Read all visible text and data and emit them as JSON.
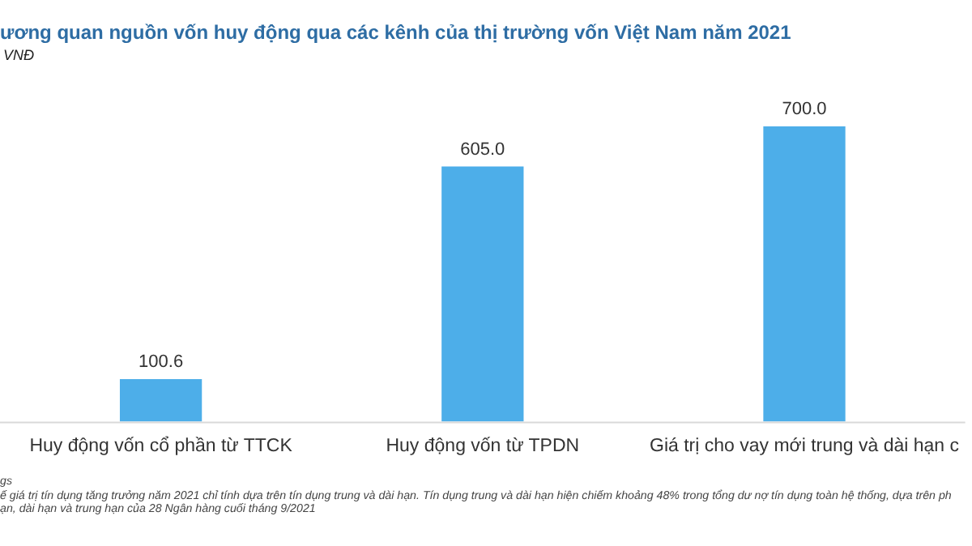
{
  "chart_data": {
    "type": "bar",
    "title": "ương quan nguồn vốn huy động qua các kênh của thị trường vốn Việt Nam năm 2021",
    "subtitle": "VNĐ",
    "categories": [
      "Huy động vốn cổ phần từ TTCK",
      "Huy động vốn từ TPDN",
      "Giá trị cho vay mới trung và dài hạn c"
    ],
    "values": [
      100.6,
      605.0,
      700.0
    ],
    "value_labels": [
      "100.6",
      "605.0",
      "700.0"
    ],
    "color": "#4daee9",
    "annotations": [
      "gs",
      "ế giá trị tín dụng tăng trưởng năm 2021 chỉ tính dựa trên tín dụng trung và dài hạn. Tín dụng trung và dài hạn hiện chiếm khoảng 48% trong tổng dư nợ tín dụng toàn hệ thống, dựa trên ph",
      "ạn, dài hạn và trung hạn của 28 Ngân hàng cuối tháng 9/2021"
    ],
    "grid": false,
    "legend": false,
    "tick_labels": "x"
  }
}
